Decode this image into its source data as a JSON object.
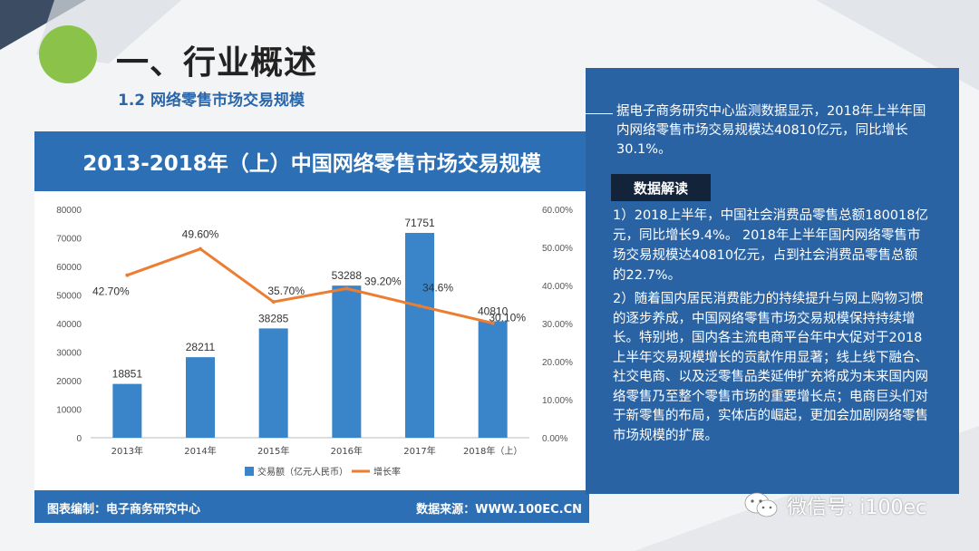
{
  "title": "一、行业概述",
  "subtitle": "1.2 网络零售市场交易规模",
  "chart_panel": {
    "header": "2013-2018年（上）中国网络零售市场交易规模",
    "footer_left": "图表编制：电子商务研究中心",
    "footer_right": "数据来源：WWW.100EC.CN"
  },
  "chart_data": {
    "type": "bar",
    "title": "2013-2018年（上）中国网络零售市场交易规模",
    "categories": [
      "2013年",
      "2014年",
      "2015年",
      "2016年",
      "2017年",
      "2018年（上）"
    ],
    "series": [
      {
        "name": "交易额（亿元人民币）",
        "type": "bar",
        "axis": "left",
        "values": [
          18851,
          28211,
          38285,
          53288,
          71751,
          40810
        ],
        "labels": [
          "18851",
          "28211",
          "38285",
          "53288",
          "71751",
          "40810"
        ],
        "color": "#3a85c9"
      },
      {
        "name": "增长率",
        "type": "line",
        "axis": "right",
        "values": [
          42.7,
          49.6,
          35.7,
          39.2,
          34.6,
          30.1
        ],
        "labels": [
          "42.70%",
          "49.60%",
          "35.70%",
          "39.20%",
          "34.6%",
          "30.10%"
        ],
        "color": "#ed7d31"
      }
    ],
    "y_left": {
      "min": 0,
      "max": 80000,
      "ticks": [
        "0",
        "10000",
        "20000",
        "30000",
        "40000",
        "50000",
        "60000",
        "70000",
        "80000"
      ]
    },
    "y_right": {
      "min": 0,
      "max": 60,
      "ticks": [
        "0.00%",
        "10.00%",
        "20.00%",
        "30.00%",
        "40.00%",
        "50.00%",
        "60.00%"
      ]
    },
    "legend_position": "bottom",
    "grid": false
  },
  "info": {
    "intro": "据电子商务研究中心监测数据显示，2018年上半年国内网络零售市场交易规模达40810亿元，同比增长30.1%。",
    "tag": "数据解读",
    "p1": "1）2018上半年，中国社会消费品零售总额180018亿元，同比增长9.4%。 2018年上半年国内网络零售市场交易规模达40810亿元，占到社会消费品零售总额的22.7%。",
    "p2": "2）随着国内居民消费能力的持续提升与网上购物习惯的逐步养成，中国网络零售市场交易规模保持持续增长。特别地，国内各主流电商平台年中大促对于2018上半年交易规模增长的贡献作用显著；线上线下融合、社交电商、以及泛零售品类延伸扩充将成为未来国内网络零售乃至整个零售市场的重要增长点；电商巨头们对于新零售的布局，实体店的崛起，更加会加剧网络零售市场规模的扩展。"
  },
  "wechat": {
    "label": "微信号: i100ec",
    "icon": "wechat-icon"
  },
  "colors": {
    "primary_blue": "#2c6fb4",
    "bar": "#3a85c9",
    "line": "#ed7d31",
    "accent_green": "#8bc34a",
    "dark_navy": "#12233a"
  }
}
